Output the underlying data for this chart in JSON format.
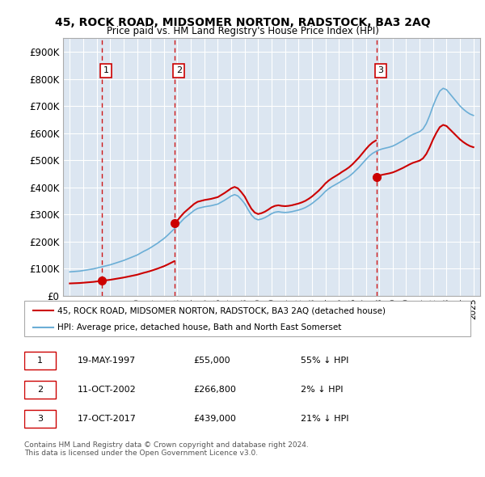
{
  "title1": "45, ROCK ROAD, MIDSOMER NORTON, RADSTOCK, BA3 2AQ",
  "title2": "Price paid vs. HM Land Registry's House Price Index (HPI)",
  "bg_color": "#dce6f1",
  "plot_bg_color": "#dce6f1",
  "ylabel_ticks": [
    "£0",
    "£100K",
    "£200K",
    "£300K",
    "£400K",
    "£500K",
    "£600K",
    "£700K",
    "£800K",
    "£900K"
  ],
  "ytick_values": [
    0,
    100000,
    200000,
    300000,
    400000,
    500000,
    600000,
    700000,
    800000,
    900000
  ],
  "xlim": [
    1994.5,
    2025.5
  ],
  "ylim": [
    0,
    950000
  ],
  "xtick_years": [
    1995,
    1996,
    1997,
    1998,
    1999,
    2000,
    2001,
    2002,
    2003,
    2004,
    2005,
    2006,
    2007,
    2008,
    2009,
    2010,
    2011,
    2012,
    2013,
    2014,
    2015,
    2016,
    2017,
    2018,
    2019,
    2020,
    2021,
    2022,
    2023,
    2024,
    2025
  ],
  "hpi_years": [
    1995,
    1995.25,
    1995.5,
    1995.75,
    1996,
    1996.25,
    1996.5,
    1996.75,
    1997,
    1997.25,
    1997.5,
    1997.75,
    1998,
    1998.25,
    1998.5,
    1998.75,
    1999,
    1999.25,
    1999.5,
    1999.75,
    2000,
    2000.25,
    2000.5,
    2000.75,
    2001,
    2001.25,
    2001.5,
    2001.75,
    2002,
    2002.25,
    2002.5,
    2002.75,
    2003,
    2003.25,
    2003.5,
    2003.75,
    2004,
    2004.25,
    2004.5,
    2004.75,
    2005,
    2005.25,
    2005.5,
    2005.75,
    2006,
    2006.25,
    2006.5,
    2006.75,
    2007,
    2007.25,
    2007.5,
    2007.75,
    2008,
    2008.25,
    2008.5,
    2008.75,
    2009,
    2009.25,
    2009.5,
    2009.75,
    2010,
    2010.25,
    2010.5,
    2010.75,
    2011,
    2011.25,
    2011.5,
    2011.75,
    2012,
    2012.25,
    2012.5,
    2012.75,
    2013,
    2013.25,
    2013.5,
    2013.75,
    2014,
    2014.25,
    2014.5,
    2014.75,
    2015,
    2015.25,
    2015.5,
    2015.75,
    2016,
    2016.25,
    2016.5,
    2016.75,
    2017,
    2017.25,
    2017.5,
    2017.75,
    2018,
    2018.25,
    2018.5,
    2018.75,
    2019,
    2019.25,
    2019.5,
    2019.75,
    2020,
    2020.25,
    2020.5,
    2020.75,
    2021,
    2021.25,
    2021.5,
    2021.75,
    2022,
    2022.25,
    2022.5,
    2022.75,
    2023,
    2023.25,
    2023.5,
    2023.75,
    2024,
    2024.25,
    2024.5,
    2024.75,
    2025
  ],
  "hpi_values": [
    88000,
    89000,
    90000,
    91000,
    93000,
    95000,
    97000,
    99000,
    102000,
    105000,
    108000,
    111000,
    114000,
    118000,
    122000,
    126000,
    130000,
    135000,
    140000,
    145000,
    150000,
    157000,
    164000,
    170000,
    177000,
    185000,
    193000,
    202000,
    211000,
    222000,
    234000,
    246000,
    258000,
    272000,
    285000,
    295000,
    305000,
    315000,
    322000,
    325000,
    328000,
    330000,
    332000,
    335000,
    338000,
    345000,
    352000,
    360000,
    368000,
    373000,
    368000,
    355000,
    340000,
    318000,
    298000,
    285000,
    280000,
    283000,
    288000,
    295000,
    303000,
    308000,
    310000,
    308000,
    307000,
    308000,
    310000,
    313000,
    316000,
    320000,
    325000,
    332000,
    340000,
    350000,
    360000,
    372000,
    385000,
    395000,
    403000,
    410000,
    417000,
    425000,
    432000,
    440000,
    450000,
    462000,
    474000,
    488000,
    502000,
    515000,
    525000,
    532000,
    538000,
    542000,
    545000,
    548000,
    552000,
    558000,
    565000,
    572000,
    580000,
    588000,
    595000,
    600000,
    605000,
    615000,
    635000,
    665000,
    700000,
    730000,
    755000,
    765000,
    760000,
    745000,
    730000,
    715000,
    700000,
    688000,
    678000,
    670000,
    665000
  ],
  "sale_years": [
    1997.38,
    2002.79,
    2017.79
  ],
  "sale_prices": [
    55000,
    266800,
    439000
  ],
  "sale_labels": [
    "1",
    "2",
    "3"
  ],
  "dashed_line_color": "#cc0000",
  "sale_dot_color": "#cc0000",
  "hpi_line_color": "#6baed6",
  "price_line_color": "#cc0000",
  "legend_label1": "45, ROCK ROAD, MIDSOMER NORTON, RADSTOCK, BA3 2AQ (detached house)",
  "legend_label2": "HPI: Average price, detached house, Bath and North East Somerset",
  "transaction_rows": [
    {
      "num": "1",
      "date": "19-MAY-1997",
      "price": "£55,000",
      "hpi": "55% ↓ HPI"
    },
    {
      "num": "2",
      "date": "11-OCT-2002",
      "price": "£266,800",
      "hpi": "2% ↓ HPI"
    },
    {
      "num": "3",
      "date": "17-OCT-2017",
      "price": "£439,000",
      "hpi": "21% ↓ HPI"
    }
  ],
  "footer": "Contains HM Land Registry data © Crown copyright and database right 2024.\nThis data is licensed under the Open Government Licence v3.0."
}
